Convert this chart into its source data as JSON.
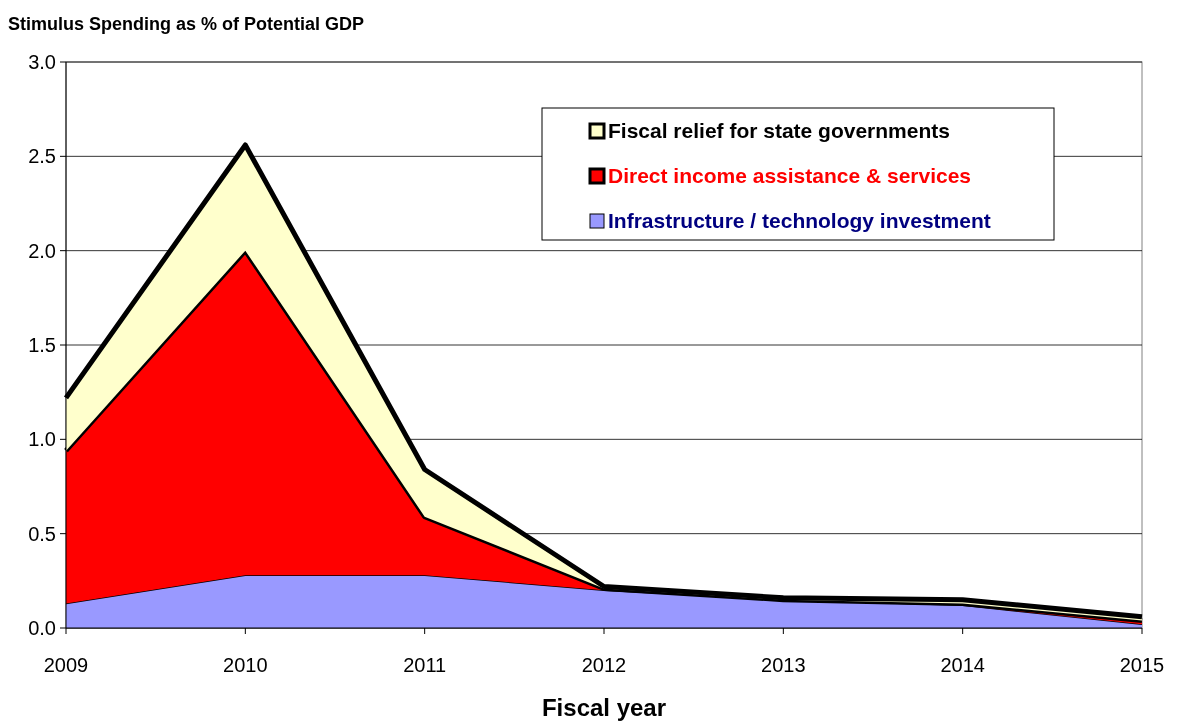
{
  "chart_data": {
    "type": "area",
    "title": "Stimulus Spending as % of Potential GDP",
    "xlabel": "Fiscal year",
    "x": [
      2009,
      2010,
      2011,
      2012,
      2013,
      2014,
      2015
    ],
    "stacked": true,
    "series": [
      {
        "name": "Infrastructure / technology investment",
        "color": "#9999ff",
        "values": [
          0.13,
          0.28,
          0.28,
          0.2,
          0.15,
          0.12,
          0.02
        ]
      },
      {
        "name": "Direct income assistance & services",
        "color": "#ff0000",
        "values": [
          0.81,
          1.72,
          0.31,
          0.01,
          0.0,
          0.01,
          0.02
        ]
      },
      {
        "name": "Fiscal relief for state governments",
        "color": "#ffffcc",
        "values": [
          0.28,
          0.56,
          0.25,
          0.01,
          0.01,
          0.02,
          0.02
        ]
      }
    ],
    "xlim": [
      2009,
      2015
    ],
    "xticks": [
      2009,
      2010,
      2011,
      2012,
      2013,
      2014,
      2015
    ],
    "ylim": [
      0,
      3
    ],
    "yticks": [
      {
        "value": 0,
        "label": "0.0"
      },
      {
        "value": 0.5,
        "label": "0.5"
      },
      {
        "value": 1,
        "label": "1.0"
      },
      {
        "value": 1.5,
        "label": "1.5"
      },
      {
        "value": 2,
        "label": "2.0"
      },
      {
        "value": 2.5,
        "label": "2.5"
      },
      {
        "value": 3,
        "label": "3.0"
      }
    ],
    "grid": "y",
    "legend": "top right"
  }
}
